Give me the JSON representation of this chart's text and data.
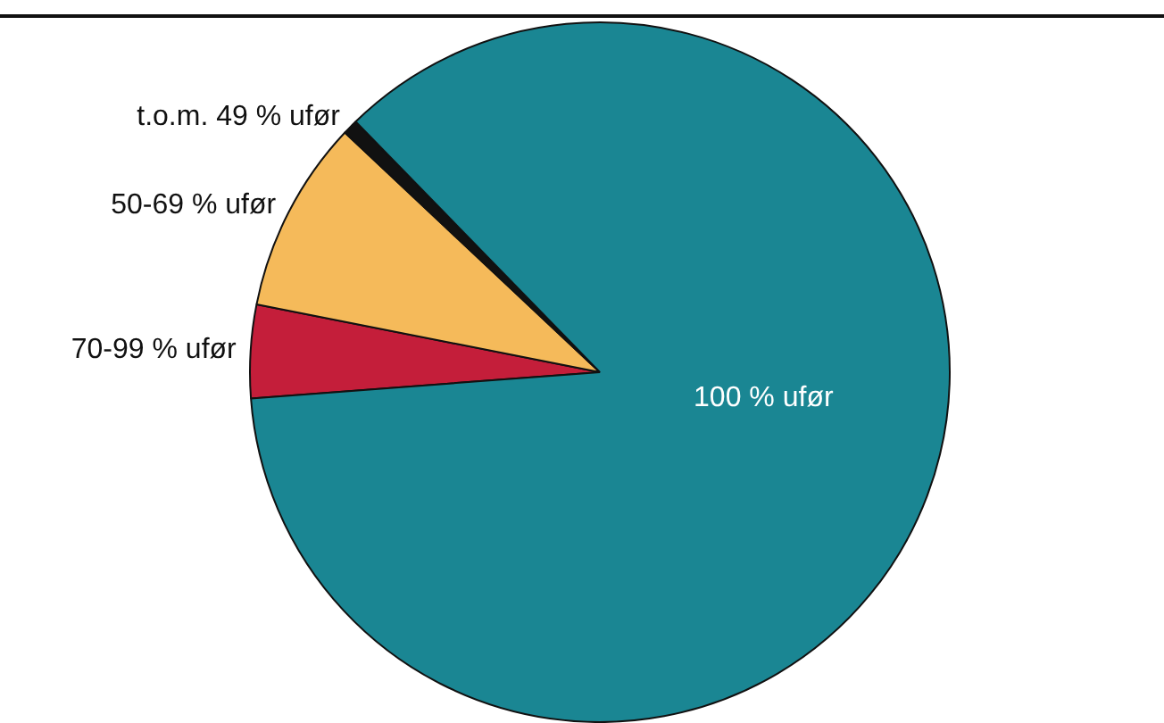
{
  "chart_data": {
    "type": "pie",
    "categories": [
      "70-99 % ufør",
      "50-69 % ufør",
      "t.o.m. 49 % ufør",
      "100 % ufør"
    ],
    "values": [
      4.3,
      8.9,
      0.7,
      86.1
    ],
    "colors": [
      "#c41e3a",
      "#f5ba5a",
      "#111111",
      "#1a8693"
    ],
    "legend": false
  }
}
